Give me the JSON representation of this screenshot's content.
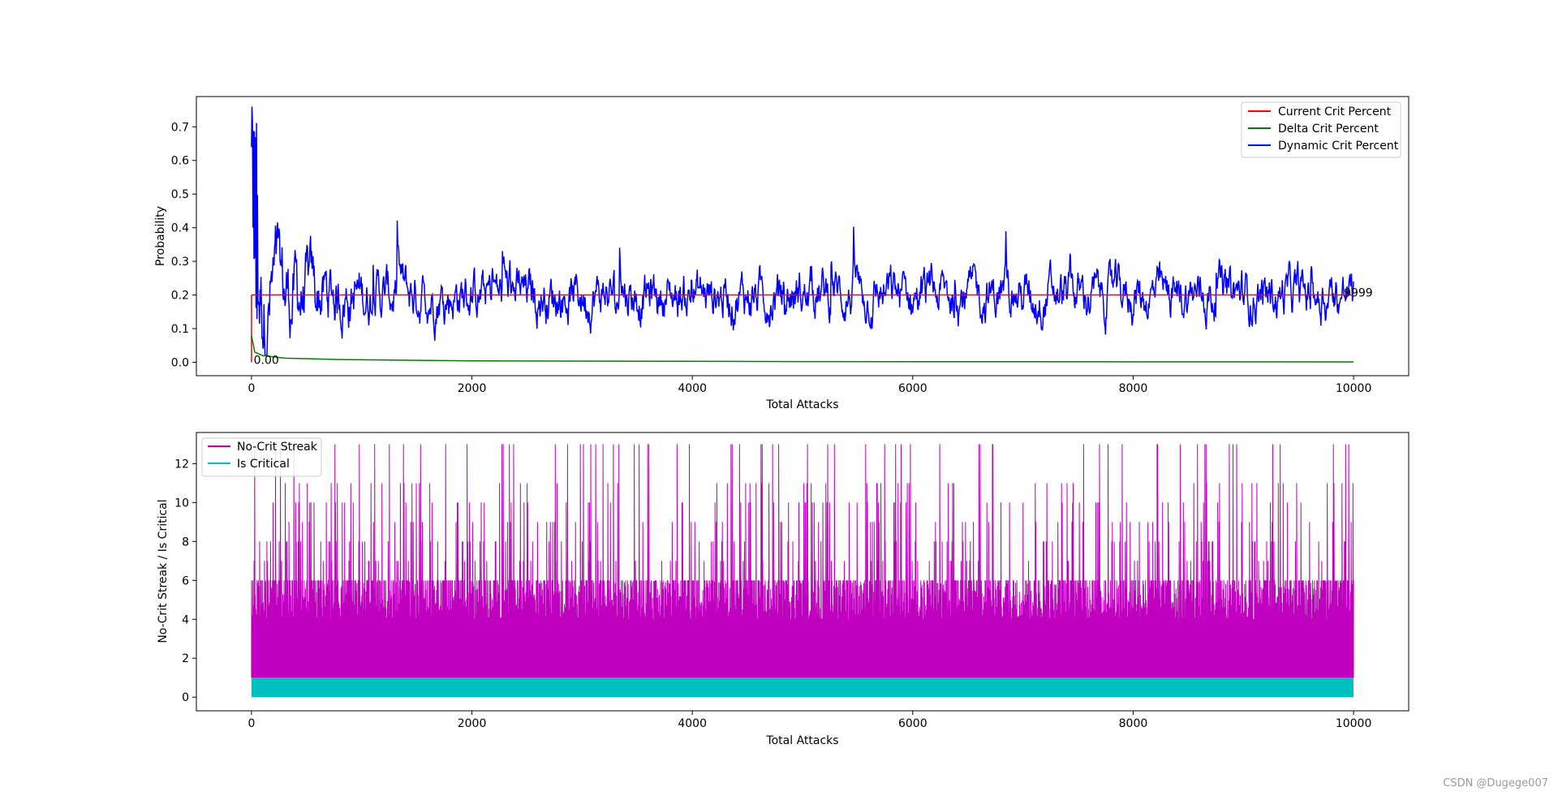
{
  "watermark": "CSDN @Dugege007",
  "colors": {
    "current": "#ff0000",
    "delta": "#008000",
    "dynamic": "#0000ff",
    "streak": "#bf00bf",
    "critical": "#00bfbf"
  },
  "chart_data": [
    {
      "type": "line",
      "xlabel": "Total Attacks",
      "ylabel": "Probability",
      "xlim": [
        -500,
        10500
      ],
      "ylim": [
        -0.04,
        0.79
      ],
      "xticks": [
        0,
        2000,
        4000,
        6000,
        8000,
        10000
      ],
      "yticks": [
        0.0,
        0.1,
        0.2,
        0.3,
        0.4,
        0.5,
        0.6,
        0.7
      ],
      "ytick_labels": [
        "0.0",
        "0.1",
        "0.2",
        "0.3",
        "0.4",
        "0.5",
        "0.6",
        "0.7"
      ],
      "legend_position": "upper right",
      "series": [
        {
          "name": "Current Crit Percent",
          "x_range": [
            0,
            9999
          ],
          "approx_value": 0.2
        },
        {
          "name": "Delta Crit Percent",
          "x_range": [
            0,
            9999
          ],
          "points": [
            [
              0,
              0.08
            ],
            [
              30,
              0.03
            ],
            [
              100,
              0.02
            ],
            [
              300,
              0.012
            ],
            [
              800,
              0.008
            ],
            [
              2000,
              0.004
            ],
            [
              5000,
              0.002
            ],
            [
              10000,
              0.001
            ]
          ]
        },
        {
          "name": "Dynamic Crit Percent",
          "x_range": [
            0,
            9999
          ],
          "mean": 0.2,
          "max_value": 0.76,
          "max_at": 10,
          "approx_min": 0.02
        }
      ],
      "annotations": {
        "near_zero": "0.00",
        "right_end": "9999"
      }
    },
    {
      "type": "line",
      "xlabel": "Total Attacks",
      "ylabel": "No-Crit Streak / Is Critical",
      "xlim": [
        -500,
        10500
      ],
      "ylim": [
        -0.7,
        13.6
      ],
      "xticks": [
        0,
        2000,
        4000,
        6000,
        8000,
        10000
      ],
      "yticks": [
        0,
        2,
        4,
        6,
        8,
        10,
        12
      ],
      "legend_position": "upper left",
      "series": [
        {
          "name": "No-Crit Streak",
          "x_range": [
            0,
            9999
          ],
          "min": 1,
          "max": 13
        },
        {
          "name": "Is Critical",
          "x_range": [
            0,
            9999
          ],
          "min": 0,
          "max": 1
        }
      ]
    }
  ]
}
